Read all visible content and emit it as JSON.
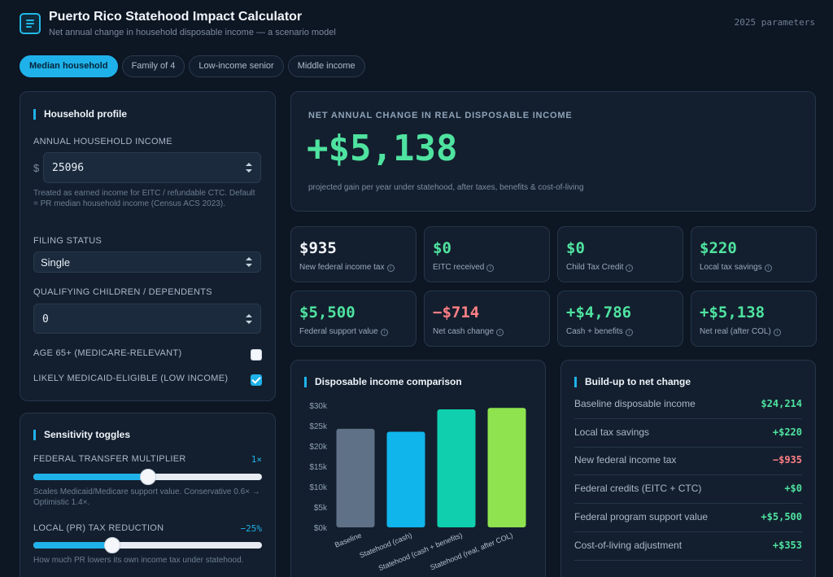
{
  "header": {
    "title": "Puerto Rico Statehood Impact Calculator",
    "subtitle": "Net annual change in household disposable income — a scenario model",
    "params_label": "2025 parameters"
  },
  "tabs": [
    "Median household",
    "Family of 4",
    "Low-income senior",
    "Middle income"
  ],
  "profile": {
    "title": "Household profile",
    "income_label": "ANNUAL HOUSEHOLD INCOME",
    "currency_symbol": "$",
    "income_value": "25096",
    "income_hint": "Treated as earned income for EITC / refundable CTC. Default = PR median household income (Census ACS 2023).",
    "filing_label": "FILING STATUS",
    "filing_value": "Single",
    "children_label": "QUALIFYING CHILDREN / DEPENDENTS",
    "children_value": "0",
    "age_label": "AGE 65+ (MEDICARE-RELEVANT)",
    "age_checked": false,
    "medicaid_label": "LIKELY MEDICAID-ELIGIBLE (LOW INCOME)",
    "medicaid_checked": true
  },
  "sensitivity": {
    "title": "Sensitivity toggles",
    "multiplier_label": "FEDERAL TRANSFER MULTIPLIER",
    "multiplier_value": "1×",
    "multiplier_level": 0.5,
    "multiplier_hint": "Scales Medicaid/Medicare support value. Conservative 0.6× → Optimistic 1.4×.",
    "tax_label": "LOCAL (PR) TAX REDUCTION",
    "tax_value": "−25%",
    "tax_level": 0.345,
    "tax_hint": "How much PR lowers its own income tax under statehood."
  },
  "hero": {
    "label": "NET ANNUAL CHANGE IN REAL DISPOSABLE INCOME",
    "value": "+$5,138",
    "sub": "projected gain per year under statehood, after taxes, benefits & cost-of-living"
  },
  "cards": [
    {
      "value": "$935",
      "label": "New federal income tax",
      "color": "#f2f6fb"
    },
    {
      "value": "$0",
      "label": "EITC received",
      "color": "#4fe3a0"
    },
    {
      "value": "$0",
      "label": "Child Tax Credit",
      "color": "#4fe3a0"
    },
    {
      "value": "$220",
      "label": "Local tax savings",
      "color": "#4fe3a0"
    },
    {
      "value": "$5,500",
      "label": "Federal support value",
      "color": "#4fe3a0"
    },
    {
      "value": "−$714",
      "label": "Net cash change",
      "color": "#ff7f85"
    },
    {
      "value": "+$4,786",
      "label": "Cash + benefits",
      "color": "#4fe3a0"
    },
    {
      "value": "+$5,138",
      "label": "Net real (after COL)",
      "color": "#4fe3a0"
    }
  ],
  "icons": {
    "info": "info-icon",
    "logo": "calculator-logo-icon"
  },
  "chart_data": {
    "type": "bar",
    "title": "Disposable income comparison",
    "categories": [
      "Baseline",
      "Statehood (cash)",
      "Statehood (cash + benefits)",
      "Statehood (real, after COL)"
    ],
    "values": [
      24214,
      23500,
      29000,
      29352
    ],
    "colors": [
      "#5f7186",
      "#10b5ec",
      "#10cfae",
      "#8ee34f"
    ],
    "yticks": [
      "$0k",
      "$5k",
      "$10k",
      "$15k",
      "$20k",
      "$25k",
      "$30k"
    ],
    "ylim": [
      0,
      30000
    ],
    "grid": false
  },
  "buildup": {
    "title": "Build-up to net change",
    "rows": [
      {
        "label": "Baseline disposable income",
        "value": "$24,214",
        "color": "#4fe3a0"
      },
      {
        "label": "Local tax savings",
        "value": "+$220",
        "color": "#4fe3a0"
      },
      {
        "label": "New federal income tax",
        "value": "−$935",
        "color": "#ff7f85"
      },
      {
        "label": "Federal credits (EITC + CTC)",
        "value": "+$0",
        "color": "#4fe3a0"
      },
      {
        "label": "Federal program support value",
        "value": "+$5,500",
        "color": "#4fe3a0"
      },
      {
        "label": "Cost-of-living adjustment",
        "value": "+$353",
        "color": "#4fe3a0"
      }
    ]
  }
}
